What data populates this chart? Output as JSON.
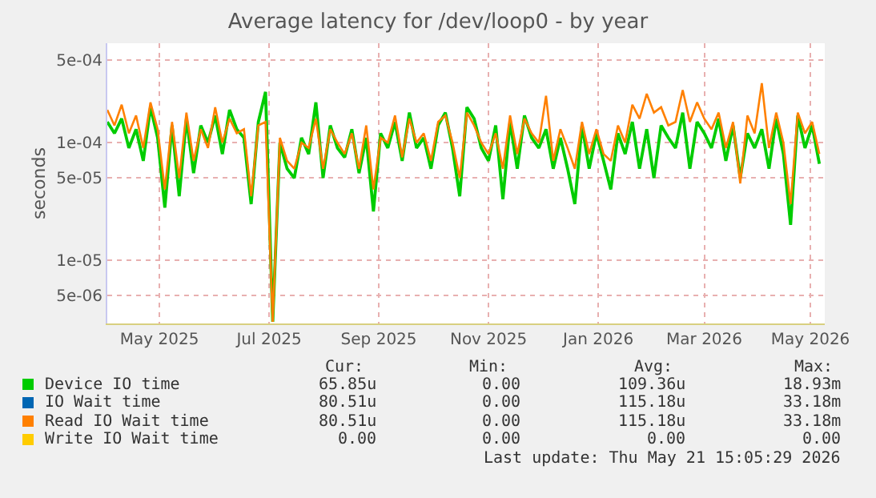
{
  "chart_data": {
    "type": "line",
    "title": "Average latency for /dev/loop0 - by year",
    "ylabel": "seconds",
    "log": "y",
    "grid": true,
    "legend": "bottom",
    "marker": "none",
    "line_style": "solid",
    "x": [
      "2025-04-18",
      "2025-04-22",
      "2025-04-26",
      "2025-04-30",
      "2025-05-04",
      "2025-05-08",
      "2025-05-12",
      "2025-05-16",
      "2025-05-20",
      "2025-05-24",
      "2025-05-28",
      "2025-06-01",
      "2025-06-05",
      "2025-06-09",
      "2025-06-13",
      "2025-06-17",
      "2025-06-21",
      "2025-06-25",
      "2025-06-29",
      "2025-07-03",
      "2025-07-07",
      "2025-07-11",
      "2025-07-15",
      "2025-07-19",
      "2025-07-23",
      "2025-07-27",
      "2025-07-31",
      "2025-08-04",
      "2025-08-08",
      "2025-08-12",
      "2025-08-16",
      "2025-08-20",
      "2025-08-24",
      "2025-08-28",
      "2025-09-01",
      "2025-09-05",
      "2025-09-09",
      "2025-09-13",
      "2025-09-17",
      "2025-09-21",
      "2025-09-25",
      "2025-09-29",
      "2025-10-03",
      "2025-10-07",
      "2025-10-11",
      "2025-10-15",
      "2025-10-19",
      "2025-10-23",
      "2025-10-27",
      "2025-10-31",
      "2025-11-04",
      "2025-11-08",
      "2025-11-12",
      "2025-11-16",
      "2025-11-20",
      "2025-11-24",
      "2025-11-28",
      "2025-12-02",
      "2025-12-06",
      "2025-12-10",
      "2025-12-14",
      "2025-12-18",
      "2025-12-22",
      "2025-12-26",
      "2025-12-30",
      "2026-01-03",
      "2026-01-07",
      "2026-01-11",
      "2026-01-15",
      "2026-01-19",
      "2026-01-23",
      "2026-01-27",
      "2026-01-31",
      "2026-02-04",
      "2026-02-08",
      "2026-02-12",
      "2026-02-16",
      "2026-02-20",
      "2026-02-24",
      "2026-02-28",
      "2026-03-04",
      "2026-03-08",
      "2026-03-12",
      "2026-03-16",
      "2026-03-20",
      "2026-03-24",
      "2026-03-28",
      "2026-04-01",
      "2026-04-05",
      "2026-04-09",
      "2026-04-13",
      "2026-04-17",
      "2026-04-21",
      "2026-04-25",
      "2026-04-29",
      "2026-05-03",
      "2026-05-07",
      "2026-05-11",
      "2026-05-15",
      "2026-05-19"
    ],
    "xlim": [
      "2025-04-18",
      "2026-05-22"
    ],
    "xticks": [
      {
        "value": "2025-05-17",
        "label": "May 2025"
      },
      {
        "value": "2025-07-17",
        "label": "Jul 2025"
      },
      {
        "value": "2025-09-16",
        "label": "Sep 2025"
      },
      {
        "value": "2025-11-16",
        "label": "Nov 2025"
      },
      {
        "value": "2026-01-16",
        "label": "Jan 2026"
      },
      {
        "value": "2026-03-16",
        "label": "Mar 2026"
      },
      {
        "value": "2026-05-14",
        "label": "May 2026"
      }
    ],
    "ylim": [
      2.9e-06,
      0.0007
    ],
    "yticks": [
      {
        "value": 5e-06,
        "label": "5e-06"
      },
      {
        "value": 1e-05,
        "label": "1e-05"
      },
      {
        "value": 5e-05,
        "label": "5e-05"
      },
      {
        "value": 0.0001,
        "label": "1e-04"
      },
      {
        "value": 0.0005,
        "label": "5e-04"
      }
    ],
    "series": [
      {
        "name": "Device IO time",
        "color": "#00cc00",
        "values": [
          0.00015,
          0.00012,
          0.00016,
          9e-05,
          0.00013,
          7e-05,
          0.0002,
          0.00011,
          2.8e-05,
          0.00014,
          3.5e-05,
          0.00016,
          5.5e-05,
          0.00014,
          0.0001,
          0.00017,
          8e-05,
          0.00019,
          0.00013,
          0.00011,
          3e-05,
          0.00015,
          0.00027,
          3e-06,
          0.0001,
          6e-05,
          5e-05,
          0.00011,
          8e-05,
          0.00022,
          5e-05,
          0.00014,
          9e-05,
          7.5e-05,
          0.00013,
          5.5e-05,
          0.00011,
          2.6e-05,
          0.00012,
          9e-05,
          0.00015,
          7e-05,
          0.00018,
          9e-05,
          0.00011,
          6e-05,
          0.00014,
          0.00018,
          9e-05,
          3.5e-05,
          0.0002,
          0.00016,
          9e-05,
          7e-05,
          0.00014,
          3.3e-05,
          0.00015,
          6e-05,
          0.00017,
          0.00011,
          9e-05,
          0.00013,
          6e-05,
          0.00011,
          6e-05,
          3e-05,
          0.00014,
          6e-05,
          0.00012,
          7e-05,
          4e-05,
          0.00012,
          8e-05,
          0.00015,
          6e-05,
          0.00013,
          5e-05,
          0.00014,
          0.00011,
          9e-05,
          0.00018,
          6e-05,
          0.00015,
          0.00012,
          9e-05,
          0.00016,
          7e-05,
          0.00014,
          5e-05,
          0.00012,
          9e-05,
          0.00013,
          6e-05,
          0.00016,
          8e-05,
          2e-05,
          0.00017,
          9e-05,
          0.00014,
          6.6e-05
        ]
      },
      {
        "name": "IO Wait time",
        "color": "#0066b3",
        "values": [
          null,
          null,
          null,
          null,
          null,
          null,
          null,
          null,
          null,
          null,
          null,
          null,
          null,
          null,
          null,
          null,
          null,
          null,
          null,
          null,
          null,
          null,
          null,
          null,
          null,
          null,
          null,
          null,
          null,
          null,
          null,
          null,
          null,
          null,
          null,
          null,
          null,
          null,
          null,
          null,
          null,
          null,
          null,
          null,
          null,
          null,
          null,
          null,
          null,
          null,
          null,
          null,
          null,
          null,
          null,
          null,
          null,
          null,
          null,
          null,
          null,
          null,
          null,
          null,
          null,
          null,
          null,
          null,
          null,
          null,
          null,
          null,
          null,
          null,
          null,
          null,
          null,
          null,
          null,
          null,
          null,
          null,
          null,
          null,
          null,
          null,
          null,
          null,
          null,
          null,
          null,
          null,
          null,
          null,
          null,
          null,
          null,
          null,
          null,
          null
        ]
      },
      {
        "name": "Read IO Wait time",
        "color": "#ff8000",
        "values": [
          0.00019,
          0.00014,
          0.00021,
          0.00012,
          0.00017,
          9e-05,
          0.00022,
          0.00013,
          4e-05,
          0.00015,
          5e-05,
          0.00018,
          7e-05,
          0.00013,
          9e-05,
          0.0002,
          0.0001,
          0.00016,
          0.00012,
          0.00013,
          3.5e-05,
          0.00014,
          0.00015,
          3e-06,
          0.00011,
          7e-05,
          6e-05,
          0.0001,
          9e-05,
          0.00016,
          6e-05,
          0.00013,
          0.0001,
          8e-05,
          0.00012,
          6e-05,
          0.00014,
          4e-05,
          0.00011,
          0.0001,
          0.00017,
          7.5e-05,
          0.00016,
          0.0001,
          0.00012,
          7e-05,
          0.00015,
          0.00017,
          0.0001,
          5e-05,
          0.00018,
          0.00014,
          0.0001,
          8e-05,
          0.00012,
          6e-05,
          0.00017,
          8e-05,
          0.00016,
          0.00012,
          0.0001,
          0.00025,
          7e-05,
          0.00013,
          9e-05,
          6e-05,
          0.00015,
          8e-05,
          0.00013,
          8e-05,
          7e-05,
          0.00014,
          0.0001,
          0.00021,
          0.00016,
          0.00026,
          0.00018,
          0.0002,
          0.00014,
          0.00015,
          0.00028,
          0.00015,
          0.00022,
          0.00016,
          0.00013,
          0.00018,
          9e-05,
          0.00015,
          4.5e-05,
          0.00017,
          0.00012,
          0.00032,
          9e-05,
          0.00018,
          0.0001,
          3e-05,
          0.00018,
          0.00012,
          0.00015,
          8e-05
        ]
      },
      {
        "name": "Write IO Wait time",
        "color": "#ffcc00",
        "values": [
          null,
          null,
          null,
          null,
          null,
          null,
          null,
          null,
          null,
          null,
          null,
          null,
          null,
          null,
          null,
          null,
          null,
          null,
          null,
          null,
          null,
          null,
          null,
          null,
          null,
          null,
          null,
          null,
          null,
          null,
          null,
          null,
          null,
          null,
          null,
          null,
          null,
          null,
          null,
          null,
          null,
          null,
          null,
          null,
          null,
          null,
          null,
          null,
          null,
          null,
          null,
          null,
          null,
          null,
          null,
          null,
          null,
          null,
          null,
          null,
          null,
          null,
          null,
          null,
          null,
          null,
          null,
          null,
          null,
          null,
          null,
          null,
          null,
          null,
          null,
          null,
          null,
          null,
          null,
          null,
          null,
          null,
          null,
          null,
          null,
          null,
          null,
          null,
          null,
          null,
          null,
          null,
          null,
          null,
          null,
          null,
          null,
          null,
          null,
          null
        ]
      }
    ],
    "annotations": [
      "Cur:",
      "Min:",
      "Avg:",
      "Max:",
      "65.85u",
      "0.00",
      "109.36u",
      "18.93m",
      "80.51u",
      "0.00",
      "115.18u",
      "33.18m",
      "80.51u",
      "0.00",
      "115.18u",
      "33.18m",
      "0.00",
      "0.00",
      "0.00",
      "0.00",
      "Last update: Thu May 21 15:05:29 2026"
    ]
  }
}
